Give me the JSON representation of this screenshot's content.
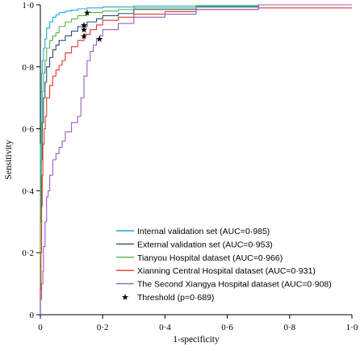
{
  "chart_data": {
    "type": "line",
    "xlabel": "1-specificity",
    "ylabel": "Sensitivity",
    "xlim": [
      0,
      1
    ],
    "ylim": [
      0,
      1
    ],
    "x_ticks": [
      "0",
      "0·2",
      "0·4",
      "0·6",
      "0·8",
      "1·0"
    ],
    "y_ticks": [
      "0",
      "0·2",
      "0·4",
      "0·6",
      "0·8",
      "1·0"
    ],
    "grid": false,
    "legend_position": "bottom-right",
    "series": [
      {
        "name": "Internal validation set (AUC=0·985)",
        "color": "#1fa9d6",
        "x": [
          0,
          0.002,
          0.004,
          0.006,
          0.01,
          0.015,
          0.02,
          0.03,
          0.04,
          0.05,
          0.06,
          0.08,
          0.1,
          0.12,
          0.15,
          0.2,
          0.3,
          0.5,
          0.7,
          1.0
        ],
        "y": [
          0,
          0.55,
          0.72,
          0.78,
          0.82,
          0.86,
          0.89,
          0.925,
          0.945,
          0.96,
          0.968,
          0.975,
          0.98,
          0.983,
          0.987,
          0.99,
          0.993,
          0.996,
          0.998,
          1.0
        ]
      },
      {
        "name": "External validation set (AUC=0·953)",
        "color": "#2b4d7a",
        "x": [
          0,
          0.003,
          0.006,
          0.01,
          0.015,
          0.02,
          0.03,
          0.04,
          0.05,
          0.06,
          0.08,
          0.1,
          0.12,
          0.15,
          0.18,
          0.2,
          0.25,
          0.3,
          0.5,
          0.7,
          1.0
        ],
        "y": [
          0,
          0.3,
          0.5,
          0.62,
          0.7,
          0.75,
          0.8,
          0.83,
          0.855,
          0.87,
          0.885,
          0.9,
          0.915,
          0.93,
          0.945,
          0.955,
          0.965,
          0.972,
          0.985,
          0.993,
          1.0
        ]
      },
      {
        "name": "Tianyou Hospital dataset (AUC=0·966)",
        "color": "#5bb04a",
        "x": [
          0,
          0.003,
          0.006,
          0.01,
          0.015,
          0.02,
          0.03,
          0.04,
          0.05,
          0.06,
          0.08,
          0.1,
          0.12,
          0.15,
          0.2,
          0.25,
          0.3,
          0.5,
          0.7,
          1.0
        ],
        "y": [
          0,
          0.45,
          0.62,
          0.72,
          0.78,
          0.82,
          0.86,
          0.885,
          0.9,
          0.91,
          0.93,
          0.945,
          0.955,
          0.965,
          0.975,
          0.98,
          0.985,
          0.99,
          0.995,
          1.0
        ]
      },
      {
        "name": "Xianning Central Hospital dataset (AUC=0·931)",
        "color": "#e03a2c",
        "x": [
          0,
          0.002,
          0.004,
          0.006,
          0.008,
          0.012,
          0.016,
          0.02,
          0.03,
          0.04,
          0.05,
          0.06,
          0.07,
          0.08,
          0.1,
          0.12,
          0.14,
          0.16,
          0.18,
          0.2,
          0.25,
          0.3,
          0.4,
          0.5,
          0.7,
          1.0
        ],
        "y": [
          0,
          0.08,
          0.2,
          0.35,
          0.45,
          0.55,
          0.6,
          0.64,
          0.7,
          0.74,
          0.77,
          0.79,
          0.805,
          0.82,
          0.845,
          0.865,
          0.885,
          0.905,
          0.92,
          0.935,
          0.95,
          0.96,
          0.97,
          0.978,
          0.985,
          0.99
        ]
      },
      {
        "name": "The Second Xiangya Hospital dataset (AUC=0·908)",
        "color": "#9a5cc4",
        "x": [
          0,
          0.004,
          0.008,
          0.01,
          0.015,
          0.02,
          0.025,
          0.03,
          0.04,
          0.05,
          0.06,
          0.07,
          0.08,
          0.1,
          0.12,
          0.13,
          0.14,
          0.15,
          0.16,
          0.17,
          0.18,
          0.19,
          0.2,
          0.25,
          0.3,
          0.4,
          0.5,
          0.7,
          1.0
        ],
        "y": [
          0,
          0.05,
          0.1,
          0.14,
          0.22,
          0.3,
          0.38,
          0.4,
          0.45,
          0.5,
          0.52,
          0.54,
          0.56,
          0.59,
          0.62,
          0.64,
          0.7,
          0.77,
          0.82,
          0.85,
          0.87,
          0.89,
          0.9,
          0.92,
          0.94,
          0.96,
          0.97,
          0.985,
          1.0
        ]
      }
    ],
    "threshold": {
      "label": "Threshold (p=0·689)",
      "marker": "star",
      "points": [
        {
          "x": 0.15,
          "y": 0.975
        },
        {
          "x": 0.14,
          "y": 0.935
        },
        {
          "x": 0.14,
          "y": 0.92
        },
        {
          "x": 0.14,
          "y": 0.9
        },
        {
          "x": 0.19,
          "y": 0.89
        }
      ]
    }
  }
}
